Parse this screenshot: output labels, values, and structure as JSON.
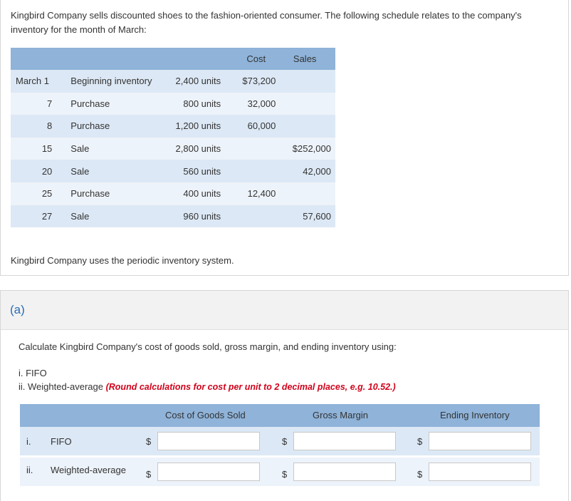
{
  "intro_text": "Kingbird Company sells discounted shoes to the fashion-oriented consumer. The following schedule relates to the company's inventory for the month of March:",
  "schedule": {
    "headers": {
      "cost": "Cost",
      "sales": "Sales"
    },
    "rows": [
      {
        "date": "March 1",
        "desc": "Beginning inventory",
        "units": "2,400 units",
        "cost": "$73,200",
        "sales": ""
      },
      {
        "date": "7",
        "desc": "Purchase",
        "units": "800 units",
        "cost": "32,000",
        "sales": ""
      },
      {
        "date": "8",
        "desc": "Purchase",
        "units": "1,200 units",
        "cost": "60,000",
        "sales": ""
      },
      {
        "date": "15",
        "desc": "Sale",
        "units": "2,800 units",
        "cost": "",
        "sales": "$252,000"
      },
      {
        "date": "20",
        "desc": "Sale",
        "units": "560 units",
        "cost": "",
        "sales": "42,000"
      },
      {
        "date": "25",
        "desc": "Purchase",
        "units": "400 units",
        "cost": "12,400",
        "sales": ""
      },
      {
        "date": "27",
        "desc": "Sale",
        "units": "960 units",
        "cost": "",
        "sales": "57,600"
      }
    ]
  },
  "periodic_note": "Kingbird Company uses the periodic inventory system.",
  "part": {
    "label": "(a)",
    "instruction": "Calculate Kingbird Company's cost of goods sold, gross margin, and ending inventory using:",
    "item_i": "i. FIFO",
    "item_ii_prefix": "ii. Weighted-average ",
    "item_ii_note": "(Round calculations for cost per unit to 2 decimal places, e.g. 10.52.)"
  },
  "answer_table": {
    "headers": {
      "cogs": "Cost of Goods Sold",
      "gross_margin": "Gross Margin",
      "ending_inventory": "Ending Inventory"
    },
    "currency": "$",
    "rows": [
      {
        "roman": "i.",
        "name": "FIFO",
        "cogs": "",
        "gross_margin": "",
        "ending_inventory": ""
      },
      {
        "roman": "ii.",
        "name": "Weighted-average",
        "cogs": "",
        "gross_margin": "",
        "ending_inventory": ""
      }
    ]
  }
}
